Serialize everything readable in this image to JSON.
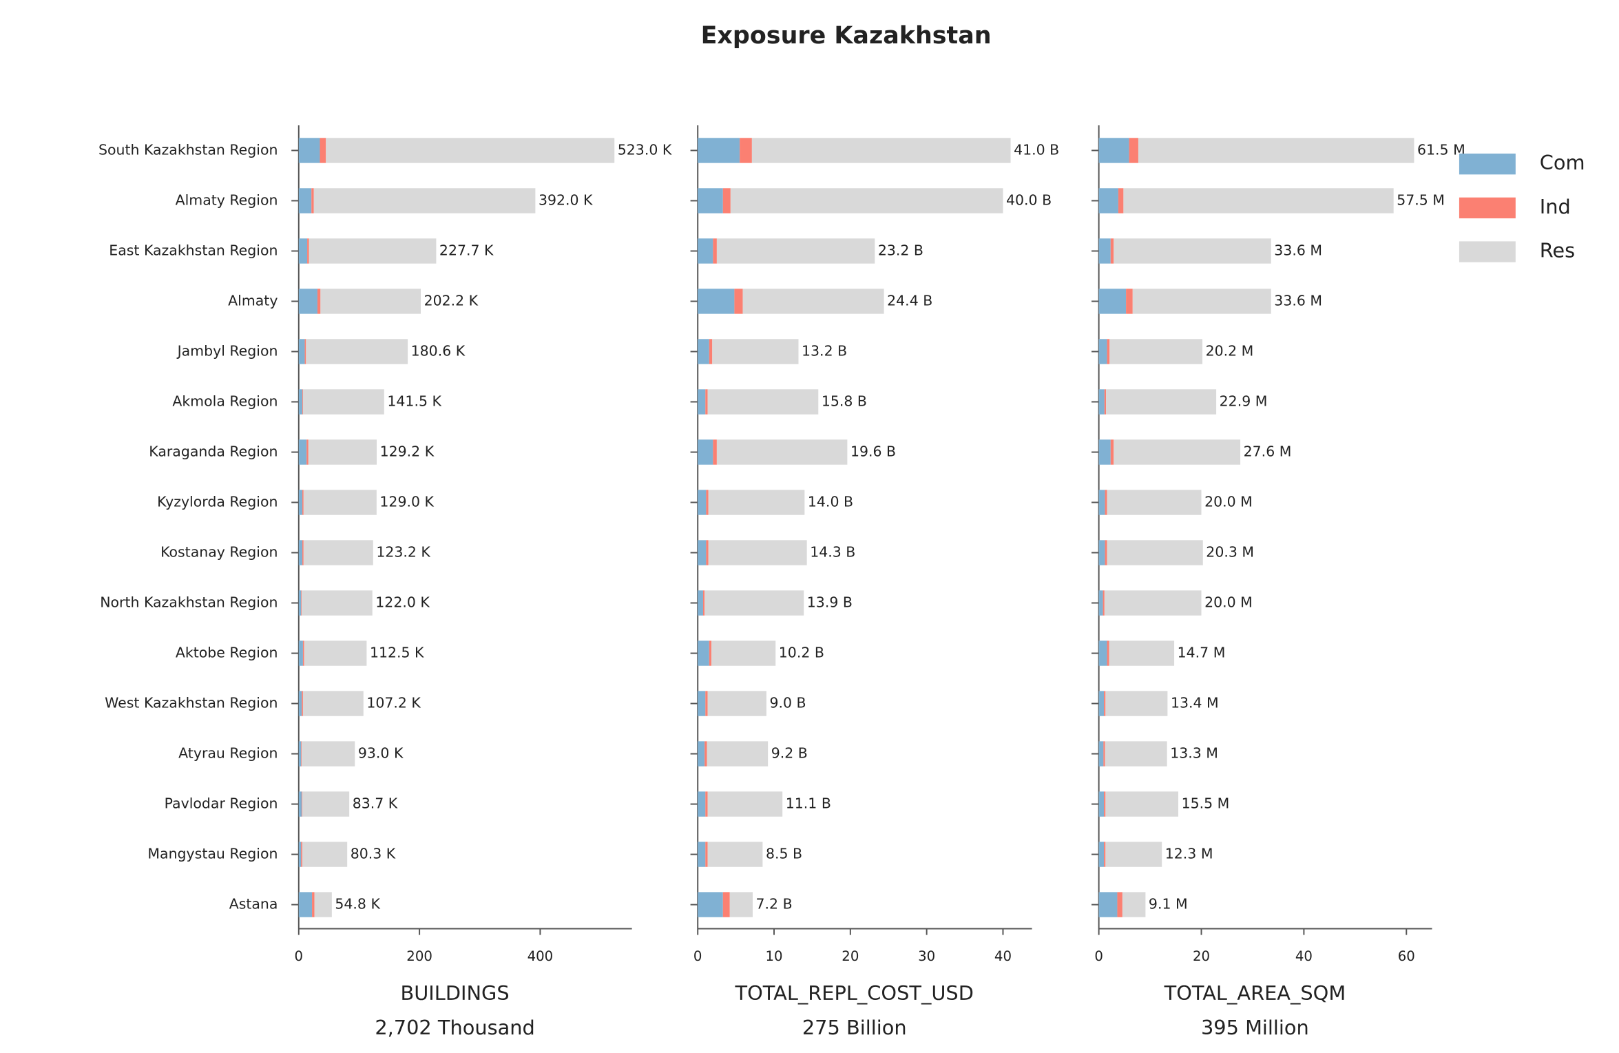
{
  "title": "Exposure Kazakhstan",
  "chart_data": [
    {
      "type": "bar",
      "orientation": "horizontal",
      "stacked": true,
      "categories": [
        "South Kazakhstan Region",
        "Almaty Region",
        "East Kazakhstan Region",
        "Almaty",
        "Jambyl Region",
        "Akmola Region",
        "Karaganda Region",
        "Kyzylorda Region",
        "Kostanay Region",
        "North Kazakhstan Region",
        "Aktobe Region",
        "West Kazakhstan Region",
        "Atyrau Region",
        "Pavlodar Region",
        "Mangystau Region",
        "Astana"
      ],
      "xlabel": [
        "BUILDINGS",
        "2,702 Thousand"
      ],
      "xlim": [
        0,
        552
      ],
      "xticks": [
        0,
        200,
        400
      ],
      "series": [
        {
          "name": "Com",
          "color": "#80b1d3",
          "values": [
            35,
            21,
            14,
            31,
            10,
            6,
            13,
            6,
            6,
            4,
            7,
            5,
            4,
            5,
            4,
            22
          ]
        },
        {
          "name": "Ind",
          "color": "#fb8072",
          "values": [
            10,
            4,
            3,
            5,
            2,
            1,
            3,
            2,
            2,
            1,
            2,
            2,
            1,
            1,
            2,
            4
          ]
        },
        {
          "name": "Res",
          "color": "#d9d9d9",
          "values": [
            478,
            367,
            210.7,
            166.2,
            168.6,
            134.5,
            113.2,
            121.0,
            115.2,
            117.0,
            103.5,
            100.2,
            88.0,
            77.7,
            74.3,
            28.8
          ]
        }
      ],
      "totals": {
        "values": [
          523.0,
          392.0,
          227.7,
          202.2,
          180.6,
          141.5,
          129.2,
          129.0,
          123.2,
          122.0,
          112.5,
          107.2,
          93.0,
          83.7,
          80.3,
          54.8
        ],
        "value_labels": [
          "523.0 K",
          "392.0 K",
          "227.7 K",
          "202.2 K",
          "180.6 K",
          "141.5 K",
          "129.2 K",
          "129.0 K",
          "123.2 K",
          "122.0 K",
          "112.5 K",
          "107.2 K",
          "93.0 K",
          "83.7 K",
          "80.3 K",
          "54.8 K"
        ]
      }
    },
    {
      "type": "bar",
      "orientation": "horizontal",
      "stacked": true,
      "xlabel": [
        "TOTAL_REPL_COST_USD",
        "275 Billion"
      ],
      "xlim": [
        0,
        43.8
      ],
      "xticks": [
        0,
        10,
        20,
        30,
        40
      ],
      "series": [
        {
          "color": "#80b1d3",
          "values": [
            5.5,
            3.3,
            2.0,
            4.8,
            1.5,
            1.0,
            2.0,
            1.1,
            1.1,
            0.7,
            1.5,
            1.0,
            0.9,
            1.0,
            1.0,
            3.3
          ]
        },
        {
          "color": "#fb8072",
          "values": [
            1.6,
            1.0,
            0.5,
            1.1,
            0.4,
            0.3,
            0.5,
            0.3,
            0.3,
            0.2,
            0.3,
            0.3,
            0.3,
            0.3,
            0.3,
            0.9
          ]
        },
        {
          "color": "#d9d9d9",
          "values": [
            33.9,
            35.7,
            20.7,
            18.5,
            11.3,
            14.5,
            17.1,
            12.6,
            12.9,
            13.0,
            8.4,
            7.7,
            8.0,
            9.8,
            7.2,
            3.0
          ]
        }
      ],
      "totals": {
        "values": [
          41.0,
          40.0,
          23.2,
          24.4,
          13.2,
          15.8,
          19.6,
          14.0,
          14.3,
          13.9,
          10.2,
          9.0,
          9.2,
          11.1,
          8.5,
          7.2
        ],
        "value_labels": [
          "41.0 B",
          "40.0 B",
          "23.2 B",
          "24.4 B",
          "13.2 B",
          "15.8 B",
          "19.6 B",
          "14.0 B",
          "14.3 B",
          "13.9 B",
          "10.2 B",
          "9.0 B",
          "9.2 B",
          "11.1 B",
          "8.5 B",
          "7.2 B"
        ]
      }
    },
    {
      "type": "bar",
      "orientation": "horizontal",
      "stacked": true,
      "xlabel": [
        "TOTAL_AREA_SQM",
        "395 Million"
      ],
      "xlim": [
        0,
        65
      ],
      "xticks": [
        0,
        20,
        40,
        60
      ],
      "series": [
        {
          "color": "#80b1d3",
          "values": [
            5.9,
            3.8,
            2.3,
            5.3,
            1.6,
            1.1,
            2.3,
            1.2,
            1.2,
            0.8,
            1.6,
            1.0,
            0.9,
            1.0,
            1.0,
            3.6
          ]
        },
        {
          "color": "#fb8072",
          "values": [
            1.8,
            1.0,
            0.6,
            1.3,
            0.5,
            0.3,
            0.6,
            0.4,
            0.4,
            0.3,
            0.4,
            0.3,
            0.3,
            0.3,
            0.3,
            1.0
          ]
        },
        {
          "color": "#d9d9d9",
          "values": [
            53.8,
            52.7,
            30.7,
            27.0,
            18.1,
            21.5,
            24.7,
            18.4,
            18.7,
            18.9,
            12.7,
            12.1,
            12.1,
            14.2,
            11.0,
            4.5
          ]
        }
      ],
      "totals": {
        "values": [
          61.5,
          57.5,
          33.6,
          33.6,
          20.2,
          22.9,
          27.6,
          20.0,
          20.3,
          20.0,
          14.7,
          13.4,
          13.3,
          15.5,
          12.3,
          9.1
        ],
        "value_labels": [
          "61.5 M",
          "57.5 M",
          "33.6 M",
          "33.6 M",
          "20.2 M",
          "22.9 M",
          "27.6 M",
          "20.0 M",
          "20.3 M",
          "20.0 M",
          "14.7 M",
          "13.4 M",
          "13.3 M",
          "15.5 M",
          "12.3 M",
          "9.1 M"
        ]
      }
    }
  ]
}
